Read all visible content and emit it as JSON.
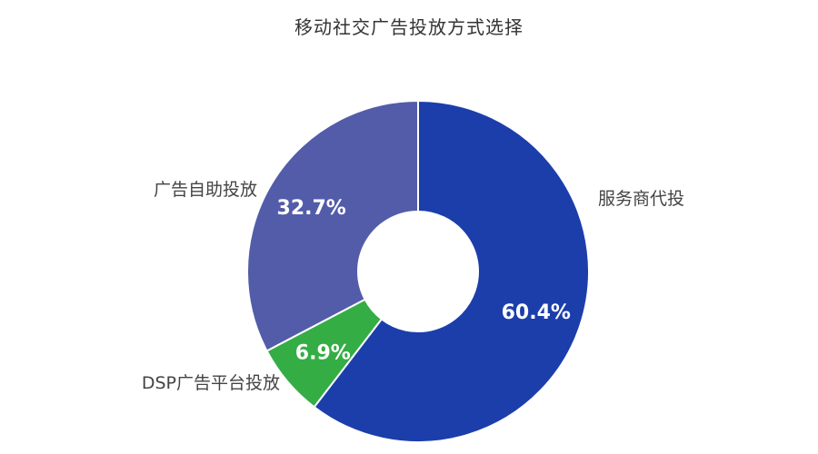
{
  "chart_data": {
    "type": "pie",
    "title": "移动社交广告投放方式选择",
    "categories": [
      "服务商代投",
      "DSP广告平台投放",
      "广告自助投放"
    ],
    "values": [
      60.4,
      6.9,
      32.7
    ],
    "value_labels": [
      "60.4%",
      "6.9%",
      "32.7%"
    ],
    "colors": [
      "#1b3eab",
      "#35ad45",
      "#535ca9"
    ],
    "donut": true,
    "legend": "none"
  }
}
